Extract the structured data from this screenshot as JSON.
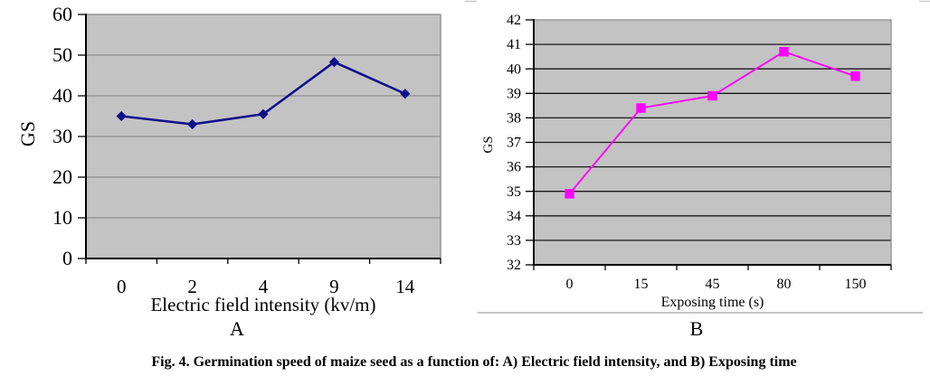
{
  "caption": "Fig. 4. Germination speed of maize seed as a function of: A) Electric field intensity, and B) Exposing time",
  "chart_data": [
    {
      "type": "line",
      "panel_label": "A",
      "xlabel": "Electric field intensity (kv/m)",
      "ylabel": "GS",
      "categories": [
        "0",
        "2",
        "4",
        "9",
        "14"
      ],
      "series": [
        {
          "name": "GS",
          "values": [
            35,
            33,
            35.5,
            48.3,
            40.5
          ]
        }
      ],
      "ylim": [
        0,
        60
      ],
      "ytick_step": 10,
      "grid": true,
      "legend": "none",
      "plot_bg": "#c3c3c3",
      "grid_color": "#8f8f8f",
      "border_color": "#8f8f8f",
      "line_color": "#10108c",
      "marker": "diamond"
    },
    {
      "type": "line",
      "panel_label": "B",
      "xlabel": "Exposing time (s)",
      "ylabel": "GS",
      "categories": [
        "0",
        "15",
        "45",
        "80",
        "150"
      ],
      "series": [
        {
          "name": "GS",
          "values": [
            34.9,
            38.4,
            38.9,
            40.7,
            39.7
          ]
        }
      ],
      "ylim": [
        32,
        42
      ],
      "ytick_step": 1,
      "grid": true,
      "legend": "none",
      "plot_bg": "#c3c3c3",
      "grid_color": "#1a1a1a",
      "border_color": "#8f8f8f",
      "line_color": "#ff00ff",
      "marker": "square"
    }
  ]
}
